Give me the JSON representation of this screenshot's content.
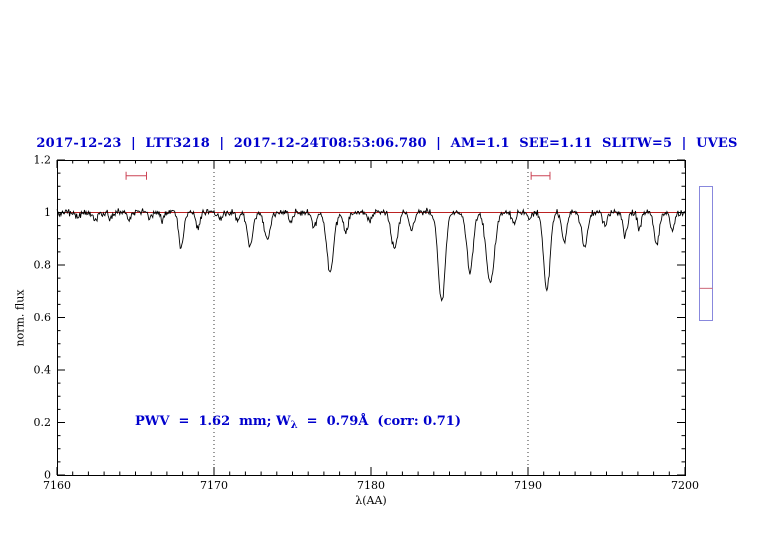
{
  "chart_data": {
    "type": "line",
    "title": "2017-12-23  |  LTT3218  |  2017-12-24T08:53:06.780  |  AM=1.1  SEE=1.11  SLITW=5  |  UVES",
    "title_color": "#0000cd",
    "xlabel": "λ(AA)",
    "ylabel": "norm. flux",
    "xlim": [
      7160,
      7200
    ],
    "ylim": [
      0,
      1.2
    ],
    "x_ticks": {
      "values": [
        7160,
        7170,
        7180,
        7190,
        7200
      ],
      "labels": [
        "7160",
        "7170",
        "7180",
        "7190",
        "7200"
      ],
      "minor_step": 1
    },
    "y_ticks": {
      "values": [
        0,
        0.2,
        0.4,
        0.6,
        0.8,
        1,
        1.2
      ],
      "labels": [
        "0",
        "0.2",
        "0.4",
        "0.6",
        "0.8",
        "1",
        "1.2"
      ],
      "minor_step": 0.05
    },
    "dotted_vlines": [
      7170,
      7190
    ],
    "continuum": {
      "y": 1.0,
      "color": "#bb2222"
    },
    "spectrum": {
      "color": "#000000",
      "noise_sigma": 0.007,
      "sample_step": 0.05,
      "seed": 20171223,
      "absorption_lines": [
        {
          "center": 7161.3,
          "depth": 0.022,
          "sigma": 0.12
        },
        {
          "center": 7162.4,
          "depth": 0.03,
          "sigma": 0.13
        },
        {
          "center": 7163.4,
          "depth": 0.022,
          "sigma": 0.12
        },
        {
          "center": 7164.6,
          "depth": 0.028,
          "sigma": 0.13
        },
        {
          "center": 7165.9,
          "depth": 0.022,
          "sigma": 0.12
        },
        {
          "center": 7166.7,
          "depth": 0.03,
          "sigma": 0.12
        },
        {
          "center": 7167.9,
          "depth": 0.13,
          "sigma": 0.16
        },
        {
          "center": 7169.0,
          "depth": 0.06,
          "sigma": 0.13
        },
        {
          "center": 7170.4,
          "depth": 0.03,
          "sigma": 0.12
        },
        {
          "center": 7171.5,
          "depth": 0.03,
          "sigma": 0.12
        },
        {
          "center": 7172.3,
          "depth": 0.125,
          "sigma": 0.18
        },
        {
          "center": 7173.4,
          "depth": 0.11,
          "sigma": 0.18
        },
        {
          "center": 7174.9,
          "depth": 0.04,
          "sigma": 0.13
        },
        {
          "center": 7176.4,
          "depth": 0.05,
          "sigma": 0.15
        },
        {
          "center": 7177.4,
          "depth": 0.23,
          "sigma": 0.22
        },
        {
          "center": 7178.4,
          "depth": 0.07,
          "sigma": 0.15
        },
        {
          "center": 7179.9,
          "depth": 0.03,
          "sigma": 0.12
        },
        {
          "center": 7181.5,
          "depth": 0.14,
          "sigma": 0.2
        },
        {
          "center": 7182.6,
          "depth": 0.07,
          "sigma": 0.15
        },
        {
          "center": 7184.5,
          "depth": 0.34,
          "sigma": 0.22
        },
        {
          "center": 7186.3,
          "depth": 0.23,
          "sigma": 0.2
        },
        {
          "center": 7187.6,
          "depth": 0.27,
          "sigma": 0.26
        },
        {
          "center": 7189.1,
          "depth": 0.04,
          "sigma": 0.12
        },
        {
          "center": 7190.1,
          "depth": 0.03,
          "sigma": 0.1
        },
        {
          "center": 7191.2,
          "depth": 0.3,
          "sigma": 0.2
        },
        {
          "center": 7192.3,
          "depth": 0.12,
          "sigma": 0.15
        },
        {
          "center": 7193.6,
          "depth": 0.13,
          "sigma": 0.18
        },
        {
          "center": 7194.9,
          "depth": 0.05,
          "sigma": 0.12
        },
        {
          "center": 7196.2,
          "depth": 0.09,
          "sigma": 0.15
        },
        {
          "center": 7197.1,
          "depth": 0.06,
          "sigma": 0.12
        },
        {
          "center": 7198.2,
          "depth": 0.12,
          "sigma": 0.16
        },
        {
          "center": 7199.2,
          "depth": 0.07,
          "sigma": 0.13
        }
      ]
    },
    "range_markers": {
      "color": "#cc4455",
      "items": [
        {
          "x_min": 7164.4,
          "x_max": 7165.7,
          "y": 1.14
        },
        {
          "x_min": 7190.2,
          "x_max": 7191.4,
          "y": 1.14
        }
      ]
    },
    "annotation": {
      "color": "#0000cd",
      "part_before_sub": "PWV  =  1.62  mm; W",
      "sub": "λ",
      "part_after_sub": "  =  0.79Å  (corr: 0.71)"
    },
    "scale_bar": {
      "border_color": "#8888dd",
      "marker_color": "#cc6677",
      "marker_frac": 0.76
    }
  }
}
